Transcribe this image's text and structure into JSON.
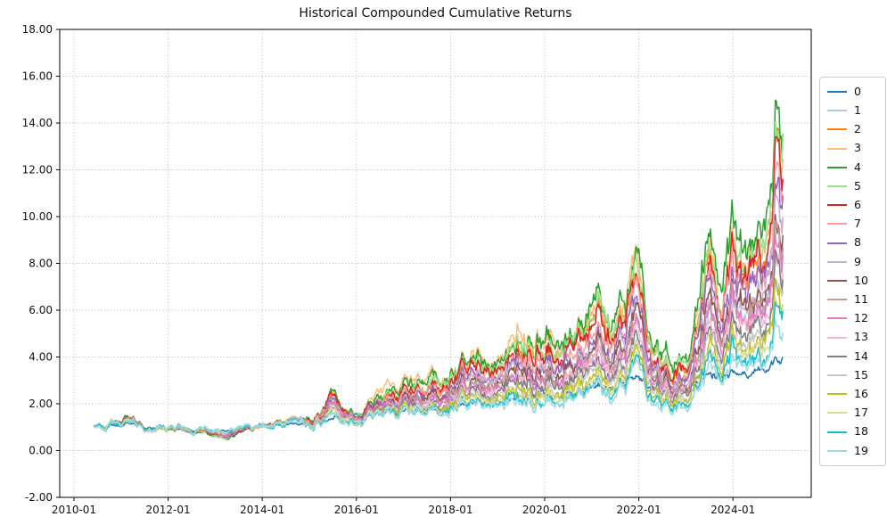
{
  "chart_data": {
    "type": "line",
    "title": "Historical Compounded Cumulative Returns",
    "ylim": [
      -2,
      18
    ],
    "ytick_values": [
      18,
      16,
      14,
      12,
      10,
      8,
      6,
      4,
      2,
      0,
      -2
    ],
    "ytick_labels": [
      "18.00",
      "16.00",
      "14.00",
      "12.00",
      "10.00",
      "8.00",
      "6.00",
      "4.00",
      "2.00",
      "0.00",
      "-2.00"
    ],
    "xtick_years": [
      2010,
      2012,
      2014,
      2016,
      2018,
      2020,
      2022,
      2024
    ],
    "xtick_labels": [
      "2010-01",
      "2012-01",
      "2014-01",
      "2016-01",
      "2018-01",
      "2020-01",
      "2022-01",
      "2024-01"
    ],
    "grid": true,
    "grid_color": "#b3b3b3",
    "legend_position": "right",
    "x_start": 2010.42,
    "x_end": 2025.08,
    "x_keypoints": [
      2010.42,
      2010.75,
      2011.1,
      2011.6,
      2012.0,
      2012.5,
      2013.0,
      2013.3,
      2013.8,
      2014.3,
      2014.8,
      2015.2,
      2015.45,
      2016.0,
      2016.6,
      2017.2,
      2017.8,
      2018.4,
      2018.9,
      2019.4,
      2019.9,
      2020.25,
      2020.7,
      2021.2,
      2021.6,
      2021.9,
      2022.3,
      2022.75,
      2023.1,
      2023.45,
      2023.7,
      2024.0,
      2024.3,
      2024.6,
      2024.85,
      2024.95,
      2025.08
    ],
    "base_curve": {
      "note": "median cumulative-return envelope read from the plot; series value = 1 + (base - 1) * k unless an explicit values array is given",
      "values": [
        1.0,
        1.06,
        1.18,
        1.0,
        0.97,
        0.94,
        0.76,
        0.72,
        0.95,
        1.08,
        1.12,
        1.35,
        1.9,
        1.3,
        1.7,
        2.1,
        2.45,
        2.85,
        2.6,
        3.45,
        3.9,
        3.3,
        3.7,
        4.6,
        4.25,
        5.0,
        3.6,
        2.55,
        3.4,
        6.1,
        4.3,
        6.1,
        5.3,
        6.3,
        7.4,
        9.8,
        8.8
      ]
    },
    "band_peak_value": 15.3,
    "band_trough_value": 0.55,
    "series": [
      {
        "name": "0",
        "color": "#1f77b4",
        "vol": 0.35,
        "values": [
          1.0,
          1.02,
          1.08,
          1.0,
          0.97,
          0.93,
          0.84,
          0.86,
          0.98,
          1.05,
          1.1,
          1.22,
          1.38,
          1.45,
          1.58,
          1.72,
          1.85,
          2.0,
          2.02,
          2.3,
          2.62,
          2.28,
          2.55,
          2.75,
          2.85,
          3.0,
          2.7,
          2.45,
          2.85,
          3.25,
          3.05,
          3.3,
          3.2,
          3.5,
          3.7,
          4.1,
          3.95
        ]
      },
      {
        "name": "1",
        "color": "#aec7e8",
        "k": 0.98
      },
      {
        "name": "2",
        "color": "#ff7f0e",
        "k": 1.44
      },
      {
        "name": "3",
        "color": "#ffbb78",
        "values": [
          1.0,
          1.09,
          1.27,
          1.0,
          0.96,
          0.91,
          0.64,
          0.58,
          0.93,
          1.12,
          1.18,
          1.53,
          2.35,
          1.45,
          2.35,
          2.95,
          3.48,
          4.08,
          3.7,
          4.98,
          5.65,
          4.75,
          5.35,
          6.7,
          6.18,
          7.5,
          4.9,
          3.33,
          4.6,
          8.65,
          5.95,
          8.65,
          7.45,
          8.95,
          10.6,
          14.2,
          12.7
        ]
      },
      {
        "name": "4",
        "color": "#2ca02c",
        "k": 1.62
      },
      {
        "name": "5",
        "color": "#98df8a",
        "k": 1.5
      },
      {
        "name": "6",
        "color": "#d62728",
        "k": 1.38
      },
      {
        "name": "7",
        "color": "#ff9896",
        "k": 1.26
      },
      {
        "name": "8",
        "color": "#9467bd",
        "k": 1.19
      },
      {
        "name": "9",
        "color": "#c5b0d5",
        "k": 1.12
      },
      {
        "name": "10",
        "color": "#8c564b",
        "k": 1.06
      },
      {
        "name": "11",
        "color": "#c49c94",
        "k": 1.0
      },
      {
        "name": "12",
        "color": "#e377c2",
        "k": 0.94
      },
      {
        "name": "13",
        "color": "#f7b6d2",
        "k": 0.88
      },
      {
        "name": "14",
        "color": "#7f7f7f",
        "k": 0.82
      },
      {
        "name": "15",
        "color": "#c7c7c7",
        "k": 0.76
      },
      {
        "name": "16",
        "color": "#bcbd22",
        "k": 0.7
      },
      {
        "name": "17",
        "color": "#dbdb8d",
        "k": 0.64
      },
      {
        "name": "18",
        "color": "#17becf",
        "k": 0.58
      },
      {
        "name": "19",
        "color": "#9edae5",
        "k": 0.53
      }
    ]
  }
}
